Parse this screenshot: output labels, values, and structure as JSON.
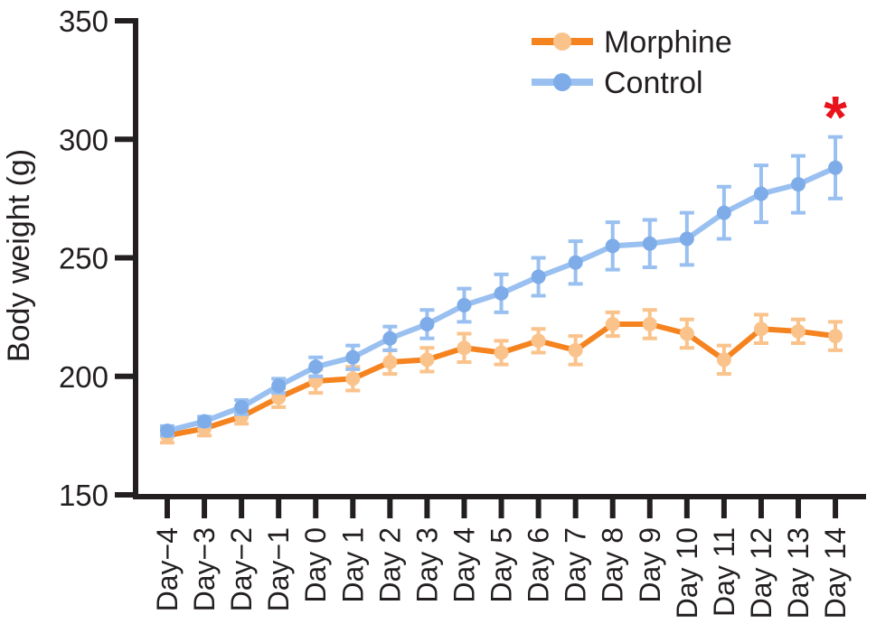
{
  "chart_data": {
    "type": "line",
    "title": "",
    "xlabel": "",
    "ylabel": "Body weight (g)",
    "ylim": [
      150,
      350
    ],
    "yticks": [
      150,
      200,
      250,
      300,
      350
    ],
    "grid": false,
    "legend_position": "top-right",
    "background_color": "#FFFFFF",
    "axis_color": "#231F20",
    "text_color": "#231F20",
    "categories": [
      "Day−4",
      "Day−3",
      "Day−2",
      "Day−1",
      "Day 0",
      "Day 1",
      "Day 2",
      "Day 3",
      "Day 4",
      "Day 5",
      "Day 6",
      "Day 7",
      "Day 8",
      "Day 9",
      "Day 10",
      "Day 11",
      "Day 12",
      "Day 13",
      "Day 14"
    ],
    "series": [
      {
        "name": "Morphine",
        "values": [
          175,
          178,
          183,
          191,
          198,
          199,
          206,
          207,
          212,
          210,
          215,
          211,
          222,
          222,
          218,
          207,
          220,
          219,
          217
        ],
        "errors": [
          3,
          3,
          3,
          4,
          5,
          5,
          5,
          5,
          6,
          5,
          5,
          6,
          5,
          6,
          6,
          6,
          6,
          5,
          6
        ],
        "line_color": "#F5831F",
        "marker_color": "#FAC38C",
        "error_color": "#FAC38C"
      },
      {
        "name": "Control",
        "values": [
          177,
          181,
          187,
          196,
          204,
          208,
          216,
          222,
          230,
          235,
          242,
          248,
          255,
          256,
          258,
          269,
          277,
          281,
          288
        ],
        "errors": [
          2,
          2,
          3,
          3,
          4,
          5,
          5,
          6,
          7,
          8,
          8,
          9,
          10,
          10,
          11,
          11,
          12,
          12,
          13
        ],
        "line_color": "#99C0F0",
        "marker_color": "#7DACE8",
        "error_color": "#99C0F0"
      }
    ],
    "annotations": [
      {
        "text": "*",
        "category": "Day 14",
        "value": 314,
        "color": "#E8131B",
        "meaning": "significance-marker"
      }
    ]
  }
}
